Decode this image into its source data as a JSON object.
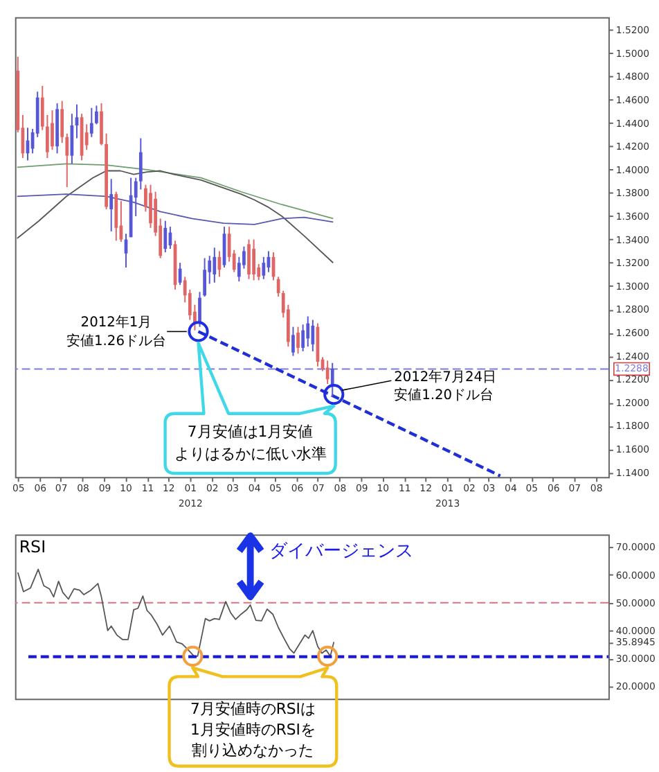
{
  "chart_data": [
    {
      "type": "candlestick",
      "x": [
        "2011-05-01",
        "2011-05-08",
        "2011-05-15",
        "2011-05-22",
        "2011-05-29",
        "2011-06-05",
        "2011-06-12",
        "2011-06-19",
        "2011-06-26",
        "2011-07-03",
        "2011-07-10",
        "2011-07-17",
        "2011-07-24",
        "2011-07-31",
        "2011-08-07",
        "2011-08-14",
        "2011-08-21",
        "2011-08-28",
        "2011-09-04",
        "2011-09-11",
        "2011-09-18",
        "2011-09-25",
        "2011-10-02",
        "2011-10-09",
        "2011-10-16",
        "2011-10-23",
        "2011-10-30",
        "2011-11-06",
        "2011-11-13",
        "2011-11-20",
        "2011-11-27",
        "2011-12-04",
        "2011-12-11",
        "2011-12-18",
        "2011-12-25",
        "2012-01-01",
        "2012-01-08",
        "2012-01-15",
        "2012-01-22",
        "2012-01-29",
        "2012-02-05",
        "2012-02-12",
        "2012-02-19",
        "2012-02-26",
        "2012-03-04",
        "2012-03-11",
        "2012-03-18",
        "2012-03-25",
        "2012-04-01",
        "2012-04-08",
        "2012-04-15",
        "2012-04-22",
        "2012-04-29",
        "2012-05-06",
        "2012-05-13",
        "2012-05-20",
        "2012-05-27",
        "2012-06-03",
        "2012-06-10",
        "2012-06-17",
        "2012-06-24",
        "2012-07-01",
        "2012-07-08",
        "2012-07-15",
        "2012-07-22"
      ],
      "ohlc": [
        [
          1.485,
          1.497,
          1.432,
          1.434
        ],
        [
          1.436,
          1.447,
          1.41,
          1.414
        ],
        [
          1.414,
          1.436,
          1.408,
          1.425
        ],
        [
          1.418,
          1.435,
          1.414,
          1.432
        ],
        [
          1.431,
          1.467,
          1.428,
          1.462
        ],
        [
          1.462,
          1.472,
          1.434,
          1.437
        ],
        [
          1.437,
          1.447,
          1.41,
          1.415
        ],
        [
          1.44,
          1.451,
          1.417,
          1.42
        ],
        [
          1.42,
          1.457,
          1.414,
          1.452
        ],
        [
          1.452,
          1.459,
          1.423,
          1.428
        ],
        [
          1.428,
          1.431,
          1.385,
          1.412
        ],
        [
          1.412,
          1.448,
          1.405,
          1.438
        ],
        [
          1.438,
          1.456,
          1.427,
          1.445
        ],
        [
          1.445,
          1.448,
          1.408,
          1.412
        ],
        [
          1.432,
          1.439,
          1.417,
          1.421
        ],
        [
          1.431,
          1.453,
          1.428,
          1.44
        ],
        [
          1.44,
          1.455,
          1.439,
          1.45
        ],
        [
          1.45,
          1.457,
          1.421,
          1.422
        ],
        [
          1.422,
          1.431,
          1.366,
          1.368
        ],
        [
          1.366,
          1.392,
          1.347,
          1.379
        ],
        [
          1.379,
          1.381,
          1.339,
          1.35
        ],
        [
          1.352,
          1.373,
          1.338,
          1.34
        ],
        [
          1.328,
          1.345,
          1.316,
          1.34
        ],
        [
          1.342,
          1.393,
          1.342,
          1.378
        ],
        [
          1.376,
          1.393,
          1.36,
          1.39
        ],
        [
          1.39,
          1.427,
          1.383,
          1.415
        ],
        [
          1.384,
          1.387,
          1.364,
          1.368
        ],
        [
          1.38,
          1.387,
          1.35,
          1.354
        ],
        [
          1.375,
          1.381,
          1.343,
          1.346
        ],
        [
          1.352,
          1.358,
          1.324,
          1.326
        ],
        [
          1.332,
          1.356,
          1.329,
          1.35
        ],
        [
          1.335,
          1.351,
          1.332,
          1.346
        ],
        [
          1.336,
          1.339,
          1.297,
          1.301
        ],
        [
          1.303,
          1.32,
          1.301,
          1.315
        ],
        [
          1.305,
          1.308,
          1.286,
          1.292
        ],
        [
          1.294,
          1.297,
          1.271,
          1.275
        ],
        [
          1.278,
          1.284,
          1.262,
          1.268
        ],
        [
          1.268,
          1.295,
          1.265,
          1.29
        ],
        [
          1.292,
          1.324,
          1.291,
          1.314
        ],
        [
          1.312,
          1.326,
          1.302,
          1.322
        ],
        [
          1.31,
          1.333,
          1.303,
          1.325
        ],
        [
          1.325,
          1.33,
          1.308,
          1.314
        ],
        [
          1.318,
          1.351,
          1.316,
          1.345
        ],
        [
          1.345,
          1.351,
          1.321,
          1.325
        ],
        [
          1.328,
          1.331,
          1.312,
          1.314
        ],
        [
          1.308,
          1.325,
          1.304,
          1.32
        ],
        [
          1.318,
          1.334,
          1.315,
          1.33
        ],
        [
          1.336,
          1.34,
          1.306,
          1.31
        ],
        [
          1.332,
          1.34,
          1.305,
          1.31
        ],
        [
          1.316,
          1.319,
          1.305,
          1.308
        ],
        [
          1.309,
          1.325,
          1.306,
          1.32
        ],
        [
          1.316,
          1.33,
          1.312,
          1.325
        ],
        [
          1.325,
          1.329,
          1.305,
          1.308
        ],
        [
          1.306,
          1.308,
          1.291,
          1.294
        ],
        [
          1.294,
          1.296,
          1.273,
          1.277
        ],
        [
          1.28,
          1.284,
          1.248,
          1.252
        ],
        [
          1.243,
          1.265,
          1.24,
          1.258
        ],
        [
          1.26,
          1.265,
          1.242,
          1.247
        ],
        [
          1.247,
          1.267,
          1.244,
          1.262
        ],
        [
          1.255,
          1.274,
          1.248,
          1.268
        ],
        [
          1.25,
          1.271,
          1.244,
          1.266
        ],
        [
          1.265,
          1.268,
          1.231,
          1.235
        ],
        [
          1.237,
          1.239,
          1.227,
          1.229
        ],
        [
          1.23,
          1.236,
          1.216,
          1.22
        ],
        [
          1.215,
          1.234,
          1.205,
          1.229
        ]
      ],
      "colors": [
        "#e06666",
        "#e06666",
        "#5656d6",
        "#5656d6",
        "#5656d6",
        "#e06666",
        "#e06666",
        "#e06666",
        "#5656d6",
        "#e06666",
        "#e06666",
        "#5656d6",
        "#5656d6",
        "#e06666",
        "#e06666",
        "#5656d6",
        "#5656d6",
        "#e06666",
        "#e06666",
        "#5656d6",
        "#e06666",
        "#e06666",
        "#5656d6",
        "#5656d6",
        "#5656d6",
        "#5656d6",
        "#e06666",
        "#e06666",
        "#e06666",
        "#e06666",
        "#5656d6",
        "#5656d6",
        "#e06666",
        "#5656d6",
        "#e06666",
        "#e06666",
        "#e06666",
        "#5656d6",
        "#5656d6",
        "#5656d6",
        "#5656d6",
        "#e06666",
        "#5656d6",
        "#e06666",
        "#e06666",
        "#5656d6",
        "#5656d6",
        "#e06666",
        "#e06666",
        "#e06666",
        "#5656d6",
        "#5656d6",
        "#e06666",
        "#e06666",
        "#e06666",
        "#e06666",
        "#5656d6",
        "#e06666",
        "#5656d6",
        "#5656d6",
        "#5656d6",
        "#e06666",
        "#e06666",
        "#e06666",
        "#5656d6"
      ],
      "xlim": [
        "2011-04-27",
        "2013-08-19"
      ],
      "xticks": [
        {
          "value": "2011-05",
          "label": "05"
        },
        {
          "value": "2011-06",
          "label": "06"
        },
        {
          "value": "2011-07",
          "label": "07"
        },
        {
          "value": "2011-08",
          "label": "08"
        },
        {
          "value": "2011-09",
          "label": "09"
        },
        {
          "value": "2011-10",
          "label": "10"
        },
        {
          "value": "2011-11",
          "label": "11"
        },
        {
          "value": "2011-12",
          "label": "12"
        },
        {
          "value": "2012-01",
          "label": "01\n2012"
        },
        {
          "value": "2012-02",
          "label": "02"
        },
        {
          "value": "2012-03",
          "label": "03"
        },
        {
          "value": "2012-04",
          "label": "04"
        },
        {
          "value": "2012-05",
          "label": "05"
        },
        {
          "value": "2012-06",
          "label": "06"
        },
        {
          "value": "2012-07",
          "label": "07"
        },
        {
          "value": "2012-08",
          "label": "08"
        },
        {
          "value": "2012-09",
          "label": "09"
        },
        {
          "value": "2012-10",
          "label": "10"
        },
        {
          "value": "2012-11",
          "label": "11"
        },
        {
          "value": "2012-12",
          "label": "12"
        },
        {
          "value": "2013-01",
          "label": "01\n2013"
        },
        {
          "value": "2013-02",
          "label": "02"
        },
        {
          "value": "2013-03",
          "label": "03"
        },
        {
          "value": "2013-04",
          "label": "04"
        },
        {
          "value": "2013-05",
          "label": "05"
        },
        {
          "value": "2013-06",
          "label": "06"
        },
        {
          "value": "2013-07",
          "label": "07"
        },
        {
          "value": "2013-08",
          "label": "08"
        }
      ],
      "ylim": [
        1.136,
        1.531
      ],
      "yticks": [
        {
          "value": 1.14,
          "label": "1.1400"
        },
        {
          "value": 1.16,
          "label": "1.1600"
        },
        {
          "value": 1.18,
          "label": "1.1800"
        },
        {
          "value": 1.2,
          "label": "1.2000"
        },
        {
          "value": 1.22,
          "label": "1.2200"
        },
        {
          "value": 1.24,
          "label": "1.2400"
        },
        {
          "value": 1.26,
          "label": "1.2600"
        },
        {
          "value": 1.28,
          "label": "1.2800"
        },
        {
          "value": 1.3,
          "label": "1.3000"
        },
        {
          "value": 1.32,
          "label": "1.3200"
        },
        {
          "value": 1.34,
          "label": "1.3400"
        },
        {
          "value": 1.36,
          "label": "1.3600"
        },
        {
          "value": 1.38,
          "label": "1.3800"
        },
        {
          "value": 1.4,
          "label": "1.4000"
        },
        {
          "value": 1.42,
          "label": "1.4200"
        },
        {
          "value": 1.44,
          "label": "1.4400"
        },
        {
          "value": 1.46,
          "label": "1.4600"
        },
        {
          "value": 1.48,
          "label": "1.4800"
        },
        {
          "value": 1.5,
          "label": "1.5000"
        },
        {
          "value": 1.52,
          "label": "1.5200"
        }
      ],
      "series": [
        {
          "type": "line",
          "color": "#6e9e6e",
          "x": [
            "2011-04-30",
            "2011-07-09",
            "2011-09-04",
            "2011-11-01",
            "2012-01-17",
            "2012-03-14",
            "2012-05-11",
            "2012-07-23"
          ],
          "values": [
            1.402,
            1.405,
            1.404,
            1.4,
            1.393,
            1.381,
            1.37,
            1.358
          ]
        },
        {
          "type": "line",
          "color": "#555555",
          "x": [
            "2011-04-30",
            "2011-05-31",
            "2011-07-09",
            "2011-08-16",
            "2011-09-04",
            "2011-09-24",
            "2011-10-13",
            "2011-11-01",
            "2011-11-20",
            "2011-12-09",
            "2012-01-17",
            "2012-03-14",
            "2012-04-02",
            "2012-04-21",
            "2012-05-11",
            "2012-06-12",
            "2012-07-23"
          ],
          "values": [
            1.341,
            1.356,
            1.377,
            1.393,
            1.399,
            1.399,
            1.396,
            1.398,
            1.399,
            1.396,
            1.391,
            1.379,
            1.374,
            1.368,
            1.36,
            1.343,
            1.32
          ]
        },
        {
          "type": "line",
          "color": "#5858b0",
          "x": [
            "2011-04-30",
            "2011-07-09",
            "2011-09-04",
            "2011-10-13",
            "2011-11-20",
            "2012-01-04",
            "2012-02-18",
            "2012-04-02",
            "2012-05-11",
            "2012-06-12",
            "2012-07-23"
          ],
          "values": [
            1.377,
            1.379,
            1.377,
            1.372,
            1.364,
            1.358,
            1.354,
            1.353,
            1.358,
            1.359,
            1.355
          ]
        },
        {
          "type": "line",
          "line_style": "dashed",
          "color": "#1f2fd6",
          "x": [
            "2012-01-13",
            "2013-03-18"
          ],
          "values": [
            1.261,
            1.137
          ]
        },
        {
          "type": "scatter",
          "marker": "circle",
          "color": "#1f2fe0",
          "x": [
            "2012-01-13",
            "2012-07-24"
          ],
          "values": [
            1.261,
            1.207
          ]
        }
      ],
      "ref_lines": [
        {
          "axis": "y",
          "value": 1.2288,
          "label": "1.2288",
          "color": "#7b7be0",
          "line_style": "dashed"
        }
      ],
      "annotations": [
        {
          "text": "2012年1月安値1.26ドル台",
          "x": "2012-01-13",
          "y": 1.261
        },
        {
          "text": "2012年7月24日安値1.20ドル台",
          "x": "2012-07-24",
          "y": 1.207
        },
        "7月安値は1月安値よりはるかに低い水準"
      ]
    },
    {
      "type": "line",
      "title": "RSI",
      "tick_labels": "y",
      "xlim": [
        "2011-04-27",
        "2013-08-19"
      ],
      "ylim": [
        15.5,
        74.5
      ],
      "yticks": [
        {
          "value": 20,
          "label": "20.0000"
        },
        {
          "value": 30,
          "label": "30.0000"
        },
        {
          "value": 35.8945,
          "label": "35.8945"
        },
        {
          "value": 40,
          "label": "40.0000"
        },
        {
          "value": 50,
          "label": "50.0000"
        },
        {
          "value": 60,
          "label": "60.0000"
        },
        {
          "value": 70,
          "label": "70.0000"
        }
      ],
      "series": [
        {
          "color": "#555555",
          "x": [
            "2011-05-01",
            "2011-05-09",
            "2011-05-19",
            "2011-05-30",
            "2011-06-07",
            "2011-06-15",
            "2011-06-21",
            "2011-06-28",
            "2011-07-04",
            "2011-07-12",
            "2011-07-20",
            "2011-07-28",
            "2011-08-03",
            "2011-08-13",
            "2011-08-23",
            "2011-08-28",
            "2011-09-06",
            "2011-09-11",
            "2011-09-19",
            "2011-09-27",
            "2011-10-05",
            "2011-10-13",
            "2011-10-19",
            "2011-10-26",
            "2011-11-01",
            "2011-11-07",
            "2011-11-15",
            "2011-11-23",
            "2011-12-03",
            "2011-12-13",
            "2011-12-21",
            "2011-12-28",
            "2012-01-07",
            "2012-01-12",
            "2012-01-23",
            "2012-01-29",
            "2012-02-05",
            "2012-02-12",
            "2012-02-21",
            "2012-02-28",
            "2012-03-06",
            "2012-03-14",
            "2012-03-22",
            "2012-03-27",
            "2012-04-04",
            "2012-04-12",
            "2012-04-20",
            "2012-04-28",
            "2012-05-06",
            "2012-05-14",
            "2012-05-22",
            "2012-05-28",
            "2012-06-05",
            "2012-06-13",
            "2012-06-18",
            "2012-06-24",
            "2012-07-01",
            "2012-07-07",
            "2012-07-13",
            "2012-07-19",
            "2012-07-24"
          ],
          "values": [
            60.9,
            54.0,
            55.3,
            62.0,
            56.1,
            55.0,
            52.1,
            57.7,
            53.7,
            51.3,
            55.0,
            54.5,
            52.9,
            54.5,
            56.9,
            52.1,
            40.0,
            41.6,
            38.4,
            36.8,
            36.8,
            47.5,
            48.0,
            52.4,
            47.2,
            45.6,
            42.4,
            38.4,
            41.6,
            35.9,
            35.2,
            33.5,
            30.8,
            30.8,
            44.3,
            43.5,
            44.3,
            44.0,
            50.4,
            46.4,
            44.0,
            45.9,
            47.5,
            49.2,
            43.7,
            43.5,
            47.7,
            45.9,
            41.1,
            37.2,
            33.5,
            31.9,
            35.2,
            38.4,
            37.2,
            40.0,
            34.3,
            31.9,
            33.0,
            30.8,
            35.9
          ]
        },
        {
          "line_style": "dashed",
          "color": "#1a1ad0",
          "x": [
            "2011-05-16",
            "2013-08-19"
          ],
          "values": [
            30.6,
            30.6
          ]
        },
        {
          "type": "scatter",
          "marker": "circle",
          "color": "#f0a040",
          "x": [
            "2012-01-05",
            "2012-07-15"
          ],
          "values": [
            30.8,
            30.8
          ]
        }
      ],
      "ref_lines": [
        {
          "axis": "y",
          "value": 50,
          "color": "#e07080",
          "line_style": "dashed"
        }
      ],
      "annotations": [
        {
          "text": "ダイバージェンス",
          "x": "2012-03-27",
          "y": 49.2
        },
        "7月安値時のRSIは1月安値時のRSIを割り込めなかった"
      ]
    }
  ]
}
